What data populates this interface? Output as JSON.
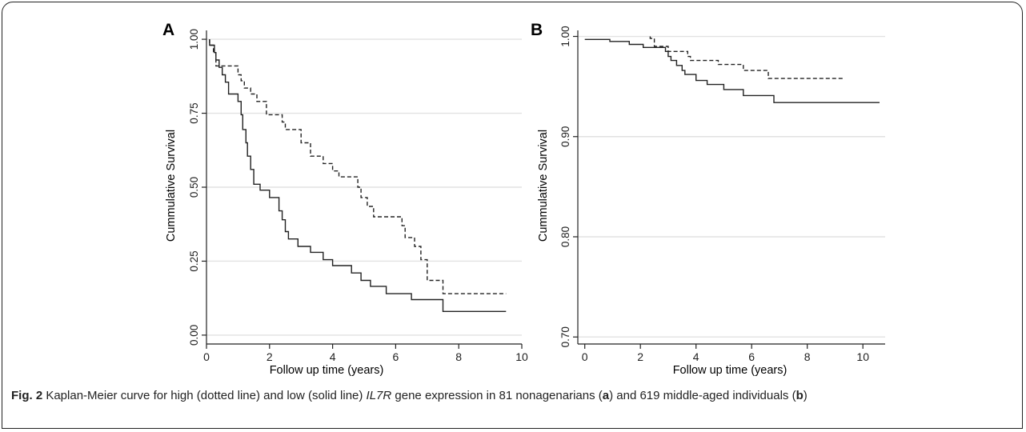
{
  "caption": {
    "fig_label": "Fig. 2",
    "text_1": " Kaplan-Meier curve for high (dotted line) and low (solid line) ",
    "gene": "IL7R",
    "text_2": " gene expression in 81 nonagenarians (",
    "panel_a": "a",
    "text_3": ") and 619 middle-aged individuals (",
    "panel_b": "b",
    "text_4": ")"
  },
  "chart_data": [
    {
      "type": "line",
      "panel_label": "A",
      "xlabel": "Follow up time (years)",
      "ylabel": "Cummulative Survival",
      "xlim": [
        0,
        10
      ],
      "ylim": [
        0,
        1
      ],
      "x_ticks": [
        0,
        2,
        4,
        6,
        8,
        10
      ],
      "x_tick_labels": [
        "0",
        "2",
        "4",
        "6",
        "8",
        "10"
      ],
      "y_ticks": [
        0,
        0.25,
        0.5,
        0.75,
        1
      ],
      "y_tick_labels": [
        "0.00",
        "0.25",
        "0.50",
        "0.75",
        "1.00"
      ],
      "grid": "horizontal",
      "colors": {
        "lines": "#222222",
        "grid": "#e2e2e2"
      },
      "series": [
        {
          "style": "dashed",
          "points": [
            [
              0.1,
              1.0
            ],
            [
              0.1,
              0.98
            ],
            [
              0.22,
              0.98
            ],
            [
              0.22,
              0.955
            ],
            [
              0.3,
              0.955
            ],
            [
              0.3,
              0.91
            ],
            [
              1.0,
              0.91
            ],
            [
              1.0,
              0.88
            ],
            [
              1.1,
              0.88
            ],
            [
              1.1,
              0.86
            ],
            [
              1.2,
              0.86
            ],
            [
              1.2,
              0.835
            ],
            [
              1.4,
              0.835
            ],
            [
              1.4,
              0.815
            ],
            [
              1.6,
              0.815
            ],
            [
              1.6,
              0.79
            ],
            [
              1.9,
              0.79
            ],
            [
              1.9,
              0.745
            ],
            [
              2.4,
              0.745
            ],
            [
              2.4,
              0.72
            ],
            [
              2.5,
              0.72
            ],
            [
              2.5,
              0.695
            ],
            [
              3.0,
              0.695
            ],
            [
              3.0,
              0.65
            ],
            [
              3.3,
              0.65
            ],
            [
              3.3,
              0.605
            ],
            [
              3.7,
              0.605
            ],
            [
              3.7,
              0.58
            ],
            [
              4.0,
              0.58
            ],
            [
              4.0,
              0.555
            ],
            [
              4.2,
              0.555
            ],
            [
              4.2,
              0.535
            ],
            [
              4.8,
              0.535
            ],
            [
              4.8,
              0.5
            ],
            [
              4.9,
              0.5
            ],
            [
              4.9,
              0.465
            ],
            [
              5.1,
              0.465
            ],
            [
              5.1,
              0.435
            ],
            [
              5.3,
              0.435
            ],
            [
              5.3,
              0.4
            ],
            [
              6.2,
              0.4
            ],
            [
              6.2,
              0.37
            ],
            [
              6.3,
              0.37
            ],
            [
              6.3,
              0.33
            ],
            [
              6.6,
              0.33
            ],
            [
              6.6,
              0.3
            ],
            [
              6.8,
              0.3
            ],
            [
              6.8,
              0.255
            ],
            [
              7.0,
              0.255
            ],
            [
              7.0,
              0.185
            ],
            [
              7.5,
              0.185
            ],
            [
              7.5,
              0.14
            ],
            [
              9.5,
              0.14
            ]
          ]
        },
        {
          "style": "solid",
          "points": [
            [
              0.1,
              1.0
            ],
            [
              0.1,
              0.98
            ],
            [
              0.25,
              0.98
            ],
            [
              0.25,
              0.955
            ],
            [
              0.3,
              0.955
            ],
            [
              0.3,
              0.93
            ],
            [
              0.4,
              0.93
            ],
            [
              0.4,
              0.905
            ],
            [
              0.5,
              0.905
            ],
            [
              0.5,
              0.88
            ],
            [
              0.6,
              0.88
            ],
            [
              0.6,
              0.855
            ],
            [
              0.7,
              0.855
            ],
            [
              0.7,
              0.815
            ],
            [
              1.0,
              0.815
            ],
            [
              1.0,
              0.79
            ],
            [
              1.1,
              0.79
            ],
            [
              1.1,
              0.745
            ],
            [
              1.15,
              0.745
            ],
            [
              1.15,
              0.695
            ],
            [
              1.25,
              0.695
            ],
            [
              1.25,
              0.65
            ],
            [
              1.3,
              0.65
            ],
            [
              1.3,
              0.605
            ],
            [
              1.4,
              0.605
            ],
            [
              1.4,
              0.56
            ],
            [
              1.5,
              0.56
            ],
            [
              1.5,
              0.51
            ],
            [
              1.7,
              0.51
            ],
            [
              1.7,
              0.49
            ],
            [
              2.0,
              0.49
            ],
            [
              2.0,
              0.465
            ],
            [
              2.3,
              0.465
            ],
            [
              2.3,
              0.42
            ],
            [
              2.4,
              0.42
            ],
            [
              2.4,
              0.39
            ],
            [
              2.5,
              0.39
            ],
            [
              2.5,
              0.35
            ],
            [
              2.6,
              0.35
            ],
            [
              2.6,
              0.325
            ],
            [
              2.9,
              0.325
            ],
            [
              2.9,
              0.3
            ],
            [
              3.3,
              0.3
            ],
            [
              3.3,
              0.28
            ],
            [
              3.7,
              0.28
            ],
            [
              3.7,
              0.255
            ],
            [
              4.0,
              0.255
            ],
            [
              4.0,
              0.235
            ],
            [
              4.6,
              0.235
            ],
            [
              4.6,
              0.21
            ],
            [
              4.9,
              0.21
            ],
            [
              4.9,
              0.185
            ],
            [
              5.2,
              0.185
            ],
            [
              5.2,
              0.165
            ],
            [
              5.7,
              0.165
            ],
            [
              5.7,
              0.14
            ],
            [
              6.5,
              0.14
            ],
            [
              6.5,
              0.12
            ],
            [
              7.5,
              0.12
            ],
            [
              7.5,
              0.08
            ],
            [
              9.5,
              0.08
            ]
          ]
        }
      ]
    },
    {
      "type": "line",
      "panel_label": "B",
      "xlabel": "Follow up time (years)",
      "ylabel": "Cummulative Survival",
      "xlim": [
        0,
        10.6
      ],
      "ylim": [
        0.7,
        1.0
      ],
      "x_ticks": [
        0,
        2,
        4,
        6,
        8,
        10
      ],
      "x_tick_labels": [
        "0",
        "2",
        "4",
        "6",
        "8",
        "10"
      ],
      "y_ticks": [
        0.7,
        0.8,
        0.9,
        1.0
      ],
      "y_tick_labels": [
        "0.70",
        "0.80",
        "0.90",
        "1.00"
      ],
      "grid": "horizontal",
      "colors": {
        "lines": "#222222",
        "grid": "#e2e2e2"
      },
      "series": [
        {
          "style": "dashed",
          "points": [
            [
              2.35,
              1.0
            ],
            [
              2.35,
              0.998
            ],
            [
              2.5,
              0.998
            ],
            [
              2.5,
              0.99
            ],
            [
              3.0,
              0.99
            ],
            [
              3.0,
              0.985
            ],
            [
              3.7,
              0.985
            ],
            [
              3.7,
              0.98
            ],
            [
              3.8,
              0.98
            ],
            [
              3.8,
              0.976
            ],
            [
              4.8,
              0.976
            ],
            [
              4.8,
              0.972
            ],
            [
              5.7,
              0.972
            ],
            [
              5.7,
              0.966
            ],
            [
              6.6,
              0.966
            ],
            [
              6.6,
              0.958
            ],
            [
              9.3,
              0.958
            ]
          ]
        },
        {
          "style": "solid",
          "points": [
            [
              0,
              0.997
            ],
            [
              0.9,
              0.997
            ],
            [
              0.9,
              0.995
            ],
            [
              1.6,
              0.995
            ],
            [
              1.6,
              0.992
            ],
            [
              2.1,
              0.992
            ],
            [
              2.1,
              0.989
            ],
            [
              2.9,
              0.989
            ],
            [
              2.9,
              0.985
            ],
            [
              3.0,
              0.985
            ],
            [
              3.0,
              0.98
            ],
            [
              3.1,
              0.98
            ],
            [
              3.1,
              0.976
            ],
            [
              3.3,
              0.976
            ],
            [
              3.3,
              0.971
            ],
            [
              3.5,
              0.971
            ],
            [
              3.5,
              0.966
            ],
            [
              3.6,
              0.966
            ],
            [
              3.6,
              0.962
            ],
            [
              4.0,
              0.962
            ],
            [
              4.0,
              0.956
            ],
            [
              4.4,
              0.956
            ],
            [
              4.4,
              0.952
            ],
            [
              5.0,
              0.952
            ],
            [
              5.0,
              0.947
            ],
            [
              5.7,
              0.947
            ],
            [
              5.7,
              0.941
            ],
            [
              6.8,
              0.941
            ],
            [
              6.8,
              0.934
            ],
            [
              10.6,
              0.934
            ]
          ]
        }
      ]
    }
  ]
}
